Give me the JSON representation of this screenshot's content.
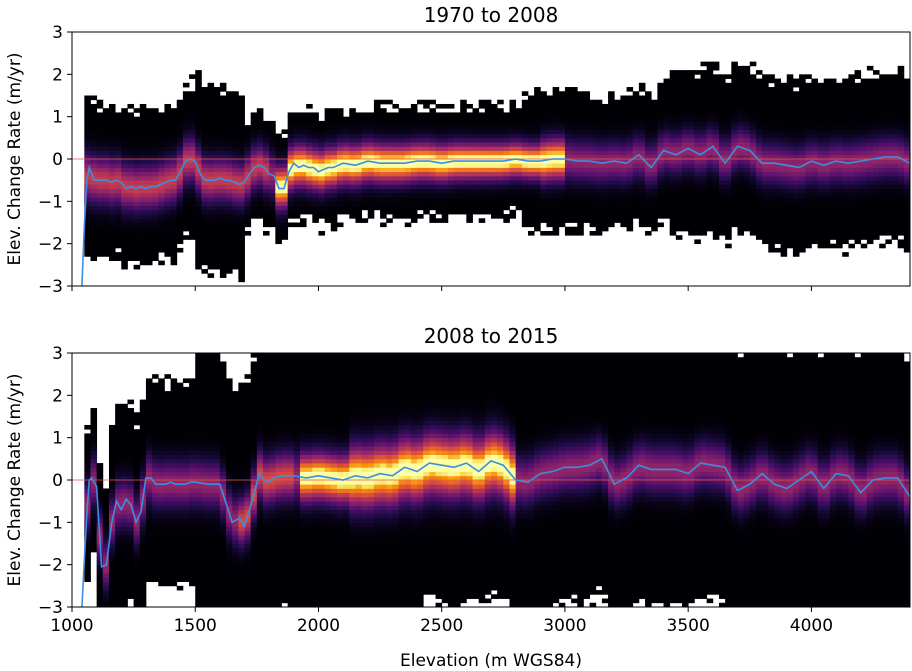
{
  "chart_data": [
    {
      "type": "heatmap",
      "title": "1970 to 2008",
      "xlabel": "Elevation (m WGS84)",
      "ylabel": "Elev. Change Rate (m/yr)",
      "xlim": [
        1000,
        4400
      ],
      "ylim": [
        -3,
        3
      ],
      "xticks": [
        "1000",
        "1500",
        "2000",
        "2500",
        "3000",
        "3500",
        "4000"
      ],
      "yticks": [
        "3",
        "2",
        "1",
        "0",
        "−1",
        "−2",
        "−3"
      ],
      "x_tick_labels_shown": false,
      "colormap": "inferno",
      "zero_line_color": "#e8584b",
      "median_line_color": "#3a8ee6",
      "median_series": {
        "x": [
          1040,
          1050,
          1060,
          1070,
          1080,
          1090,
          1100,
          1120,
          1140,
          1160,
          1180,
          1200,
          1220,
          1240,
          1260,
          1280,
          1300,
          1320,
          1340,
          1360,
          1380,
          1400,
          1420,
          1440,
          1460,
          1480,
          1500,
          1520,
          1540,
          1560,
          1580,
          1600,
          1620,
          1640,
          1660,
          1680,
          1700,
          1720,
          1740,
          1760,
          1780,
          1800,
          1820,
          1840,
          1860,
          1880,
          1900,
          1920,
          1940,
          1960,
          1980,
          2000,
          2020,
          2040,
          2060,
          2080,
          2100,
          2150,
          2200,
          2250,
          2300,
          2350,
          2400,
          2450,
          2500,
          2550,
          2600,
          2650,
          2700,
          2750,
          2800,
          2850,
          2900,
          2950,
          3000,
          3050,
          3100,
          3150,
          3200,
          3250,
          3300,
          3350,
          3400,
          3450,
          3500,
          3550,
          3600,
          3650,
          3700,
          3750,
          3800,
          3850,
          3900,
          3950,
          4000,
          4050,
          4100,
          4150,
          4200,
          4250,
          4300,
          4350,
          4400
        ],
        "y": [
          -3.0,
          -1.6,
          -0.5,
          -0.2,
          -0.35,
          -0.5,
          -0.5,
          -0.5,
          -0.5,
          -0.55,
          -0.5,
          -0.55,
          -0.7,
          -0.65,
          -0.7,
          -0.65,
          -0.7,
          -0.65,
          -0.65,
          -0.6,
          -0.55,
          -0.5,
          -0.5,
          -0.3,
          -0.05,
          0.0,
          -0.05,
          -0.35,
          -0.5,
          -0.5,
          -0.5,
          -0.45,
          -0.5,
          -0.5,
          -0.55,
          -0.6,
          -0.55,
          -0.35,
          -0.2,
          -0.15,
          -0.2,
          -0.35,
          -0.4,
          -0.7,
          -0.7,
          -0.3,
          -0.1,
          -0.2,
          -0.15,
          -0.2,
          -0.2,
          -0.3,
          -0.25,
          -0.2,
          -0.2,
          -0.15,
          -0.1,
          -0.15,
          -0.05,
          -0.1,
          -0.1,
          -0.1,
          -0.05,
          -0.05,
          -0.1,
          -0.05,
          -0.05,
          -0.05,
          -0.05,
          -0.05,
          0.0,
          -0.05,
          -0.05,
          0.0,
          0.0,
          -0.05,
          -0.05,
          -0.1,
          -0.05,
          -0.1,
          0.1,
          -0.2,
          0.2,
          0.1,
          0.25,
          0.1,
          0.3,
          -0.1,
          0.3,
          0.2,
          -0.1,
          -0.1,
          -0.15,
          -0.2,
          -0.05,
          -0.15,
          -0.05,
          -0.1,
          -0.05,
          0.0,
          0.05,
          0.05,
          -0.1
        ]
      }
    },
    {
      "type": "heatmap",
      "title": "2008 to 2015",
      "xlabel": "Elevation (m WGS84)",
      "ylabel": "Elev. Change Rate (m/yr)",
      "xlim": [
        1000,
        4400
      ],
      "ylim": [
        -3,
        3
      ],
      "xticks": [
        "1000",
        "1500",
        "2000",
        "2500",
        "3000",
        "3500",
        "4000"
      ],
      "yticks": [
        "3",
        "2",
        "1",
        "0",
        "−1",
        "−2",
        "−3"
      ],
      "x_tick_labels_shown": true,
      "colormap": "inferno",
      "zero_line_color": "#e8584b",
      "median_line_color": "#3a8ee6",
      "median_series": {
        "x": [
          1040,
          1060,
          1070,
          1080,
          1100,
          1120,
          1140,
          1160,
          1180,
          1200,
          1220,
          1240,
          1260,
          1280,
          1300,
          1320,
          1340,
          1360,
          1380,
          1400,
          1420,
          1440,
          1460,
          1480,
          1500,
          1550,
          1600,
          1650,
          1680,
          1700,
          1720,
          1740,
          1760,
          1780,
          1800,
          1820,
          1850,
          1900,
          1950,
          2000,
          2050,
          2100,
          2150,
          2200,
          2250,
          2300,
          2350,
          2400,
          2450,
          2500,
          2550,
          2600,
          2650,
          2700,
          2750,
          2800,
          2850,
          2900,
          2950,
          3000,
          3050,
          3100,
          3150,
          3200,
          3250,
          3300,
          3350,
          3400,
          3450,
          3500,
          3550,
          3600,
          3650,
          3700,
          3750,
          3800,
          3850,
          3900,
          3950,
          4000,
          4050,
          4100,
          4150,
          4200,
          4250,
          4300,
          4350,
          4400
        ],
        "y": [
          -3.0,
          -0.8,
          0.0,
          0.05,
          -0.15,
          -2.05,
          -2.0,
          -1.05,
          -0.5,
          -0.7,
          -0.45,
          -0.6,
          -1.0,
          -0.75,
          0.05,
          0.05,
          -0.1,
          -0.1,
          -0.1,
          -0.05,
          -0.1,
          -0.1,
          -0.1,
          -0.05,
          -0.05,
          -0.1,
          -0.1,
          -1.0,
          -0.9,
          -1.1,
          -0.7,
          -0.3,
          0.15,
          0.0,
          -0.05,
          0.05,
          0.1,
          0.1,
          0.05,
          0.1,
          0.05,
          0.0,
          0.1,
          0.05,
          0.15,
          0.1,
          0.3,
          0.2,
          0.4,
          0.35,
          0.3,
          0.4,
          0.2,
          0.45,
          0.35,
          0.0,
          -0.05,
          0.15,
          0.2,
          0.3,
          0.3,
          0.35,
          0.5,
          -0.1,
          0.05,
          0.35,
          0.25,
          0.25,
          0.25,
          0.15,
          0.4,
          0.35,
          0.3,
          -0.25,
          -0.1,
          0.15,
          -0.1,
          -0.2,
          0.0,
          0.2,
          -0.2,
          0.15,
          0.1,
          -0.3,
          0.0,
          0.05,
          0.05,
          -0.4
        ]
      }
    }
  ]
}
